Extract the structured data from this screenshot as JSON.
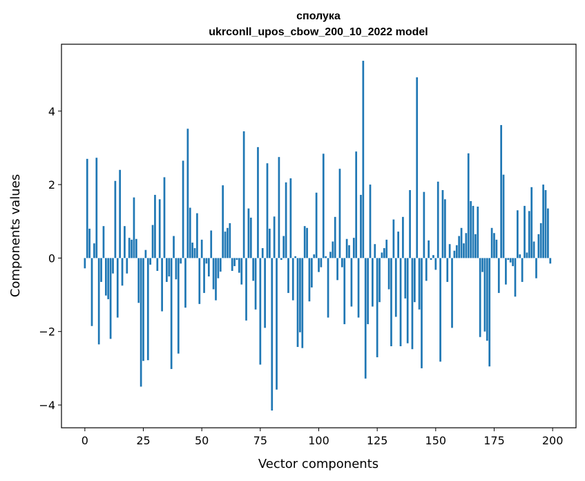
{
  "chart_data": {
    "type": "bar",
    "title": "сполука",
    "subtitle": "ukrconll_upos_cbow_200_10_2022 model",
    "xlabel": "Vector components",
    "ylabel": "Components values",
    "x_ticks": [
      0,
      25,
      50,
      75,
      100,
      125,
      150,
      175,
      200
    ],
    "y_ticks": [
      -4,
      -2,
      0,
      2,
      4
    ],
    "y_tick_labels": [
      "−4",
      "−2",
      "0",
      "2",
      "4"
    ],
    "xlim": [
      -10,
      210
    ],
    "ylim": [
      -4.62,
      5.82
    ],
    "bar_color": "#1f77b4",
    "grid": false,
    "x": [
      0,
      1,
      2,
      3,
      4,
      5,
      6,
      7,
      8,
      9,
      10,
      11,
      12,
      13,
      14,
      15,
      16,
      17,
      18,
      19,
      20,
      21,
      22,
      23,
      24,
      25,
      26,
      27,
      28,
      29,
      30,
      31,
      32,
      33,
      34,
      35,
      36,
      37,
      38,
      39,
      40,
      41,
      42,
      43,
      44,
      45,
      46,
      47,
      48,
      49,
      50,
      51,
      52,
      53,
      54,
      55,
      56,
      57,
      58,
      59,
      60,
      61,
      62,
      63,
      64,
      65,
      66,
      67,
      68,
      69,
      70,
      71,
      72,
      73,
      74,
      75,
      76,
      77,
      78,
      79,
      80,
      81,
      82,
      83,
      84,
      85,
      86,
      87,
      88,
      89,
      90,
      91,
      92,
      93,
      94,
      95,
      96,
      97,
      98,
      99,
      100,
      101,
      102,
      103,
      104,
      105,
      106,
      107,
      108,
      109,
      110,
      111,
      112,
      113,
      114,
      115,
      116,
      117,
      118,
      119,
      120,
      121,
      122,
      123,
      124,
      125,
      126,
      127,
      128,
      129,
      130,
      131,
      132,
      133,
      134,
      135,
      136,
      137,
      138,
      139,
      140,
      141,
      142,
      143,
      144,
      145,
      146,
      147,
      148,
      149,
      150,
      151,
      152,
      153,
      154,
      155,
      156,
      157,
      158,
      159,
      160,
      161,
      162,
      163,
      164,
      165,
      166,
      167,
      168,
      169,
      170,
      171,
      172,
      173,
      174,
      175,
      176,
      177,
      178,
      179,
      180,
      181,
      182,
      183,
      184,
      185,
      186,
      187,
      188,
      189,
      190,
      191,
      192,
      193,
      194,
      195,
      196,
      197,
      198,
      199
    ],
    "values": [
      -0.28,
      2.7,
      0.8,
      -1.85,
      0.4,
      2.73,
      -2.35,
      -0.65,
      0.87,
      -1.02,
      -1.12,
      -2.2,
      -0.42,
      2.1,
      -1.62,
      2.4,
      -0.75,
      0.87,
      -0.42,
      0.55,
      0.5,
      1.65,
      0.52,
      -1.22,
      -3.5,
      -2.8,
      0.22,
      -2.78,
      -0.18,
      0.9,
      1.72,
      -0.35,
      1.6,
      -1.45,
      2.2,
      -0.65,
      -0.5,
      -3.02,
      0.6,
      -0.58,
      -2.6,
      -0.15,
      2.65,
      -1.35,
      3.52,
      1.37,
      0.42,
      0.27,
      1.22,
      -1.25,
      0.5,
      -0.95,
      -0.15,
      -0.5,
      0.75,
      -0.85,
      -1.15,
      -0.55,
      -0.37,
      1.98,
      0.72,
      0.82,
      0.95,
      -0.35,
      -0.22,
      -0.05,
      -0.4,
      -0.72,
      3.45,
      -1.7,
      1.35,
      1.1,
      -0.62,
      -1.4,
      3.02,
      -2.9,
      0.27,
      -1.9,
      2.58,
      0.8,
      -4.15,
      1.13,
      -3.58,
      2.75,
      -0.05,
      0.6,
      2.06,
      -0.95,
      2.17,
      -1.15,
      0.05,
      -2.42,
      -2.02,
      -2.45,
      0.87,
      0.82,
      -1.18,
      -0.8,
      0.1,
      1.78,
      -0.38,
      -0.25,
      2.84,
      0.05,
      -1.62,
      0.17,
      0.45,
      1.12,
      -0.6,
      2.43,
      -0.25,
      -1.8,
      0.52,
      0.35,
      -1.32,
      0.55,
      2.9,
      -1.62,
      1.72,
      5.37,
      -3.28,
      -1.8,
      2.0,
      -1.32,
      0.38,
      -2.7,
      -1.2,
      0.15,
      0.27,
      0.5,
      -0.85,
      -2.4,
      1.05,
      -1.6,
      0.72,
      -2.4,
      1.12,
      -1.1,
      -2.32,
      1.85,
      -2.48,
      -1.2,
      4.92,
      -1.4,
      -3.0,
      1.8,
      -0.62,
      0.48,
      -0.05,
      0.08,
      -0.32,
      2.08,
      -2.82,
      1.85,
      1.6,
      -0.65,
      0.38,
      -1.9,
      0.2,
      0.35,
      0.6,
      0.82,
      0.4,
      0.68,
      2.85,
      1.55,
      1.42,
      0.65,
      1.4,
      -2.15,
      -0.38,
      -2.0,
      -2.25,
      -2.95,
      0.82,
      0.68,
      0.5,
      -0.95,
      3.62,
      2.27,
      -0.72,
      -0.05,
      -0.12,
      -0.22,
      -1.05,
      1.3,
      0.1,
      -0.65,
      1.42,
      0.15,
      1.28,
      1.93,
      0.45,
      -0.55,
      0.65,
      0.95,
      2.0,
      1.85,
      1.35,
      -0.15
    ]
  }
}
